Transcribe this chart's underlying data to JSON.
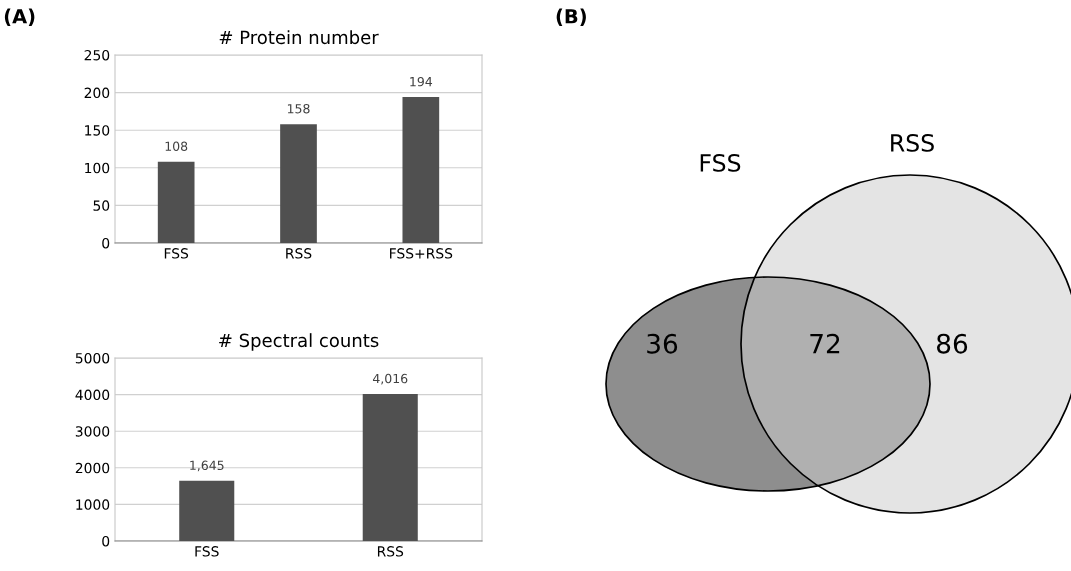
{
  "chart_data": [
    {
      "type": "bar",
      "title": "# Protein number",
      "annotations": [
        "(A)"
      ],
      "categories": [
        "FSS",
        "RSS",
        "FSS+RSS"
      ],
      "values": [
        108,
        158,
        194
      ],
      "color": "#505050",
      "ylim": [
        0,
        250
      ],
      "yticks": [
        0,
        50,
        100,
        150,
        200,
        250
      ],
      "grid": "y",
      "data_labels": true,
      "legend": false
    },
    {
      "type": "bar",
      "title": "# Spectral counts",
      "categories": [
        "FSS",
        "RSS"
      ],
      "values": [
        1645,
        4016
      ],
      "value_labels": [
        "1,645",
        "4,016"
      ],
      "color": "#505050",
      "ylim": [
        0,
        5000
      ],
      "yticks": [
        0,
        1000,
        2000,
        3000,
        4000,
        5000
      ],
      "grid": "y",
      "legend": false
    },
    {
      "type": "other",
      "annotations": [
        "(B)"
      ],
      "categories": [
        "FSS",
        null,
        "RSS"
      ],
      "values": [
        36,
        72,
        86
      ],
      "colors": [
        "#8e8e8e",
        "#b0b0b0",
        "#e4e4e4"
      ],
      "data_labels": true
    }
  ]
}
